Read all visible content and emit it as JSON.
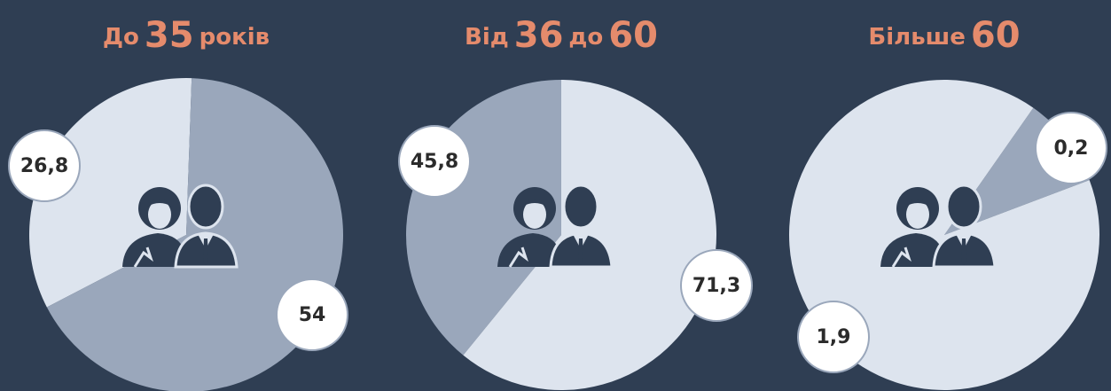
{
  "chart_data": [
    {
      "type": "pie",
      "title": [
        "До",
        "35",
        "років"
      ],
      "values": [
        26.8,
        54
      ],
      "value_labels": [
        "26,8",
        "54"
      ],
      "colors": [
        "#dde4ee",
        "#9aa7bb"
      ]
    },
    {
      "type": "pie",
      "title": [
        "Від",
        "36",
        "до",
        "60"
      ],
      "values": [
        45.8,
        71.3
      ],
      "value_labels": [
        "45,8",
        "71,3"
      ],
      "colors": [
        "#9aa7bb",
        "#dde4ee"
      ]
    },
    {
      "type": "pie",
      "title": [
        "Більше",
        "60"
      ],
      "values": [
        0.2,
        1.9
      ],
      "value_labels": [
        "0,2",
        "1,9"
      ],
      "colors": [
        "#9aa7bb",
        "#dde4ee"
      ]
    }
  ]
}
